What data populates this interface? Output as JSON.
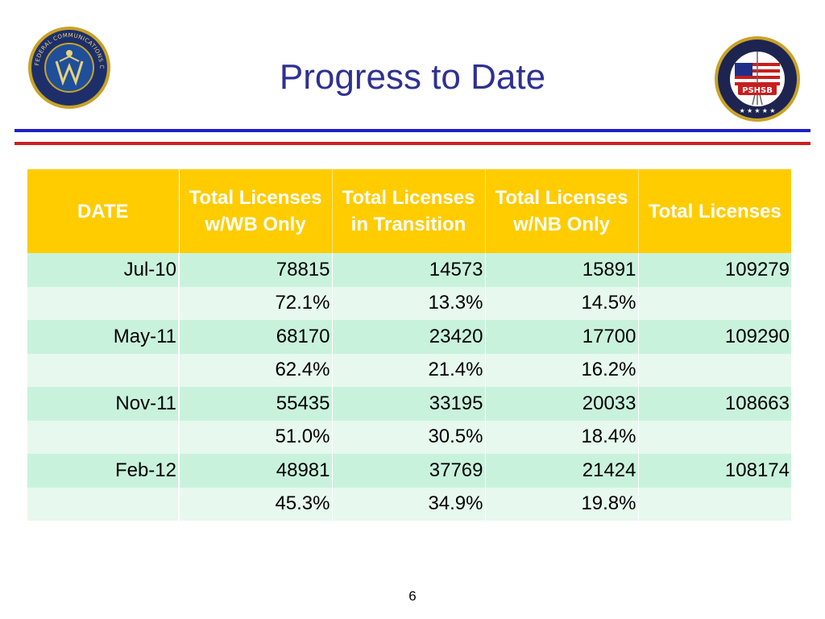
{
  "slide": {
    "title": "Progress to Date",
    "page_number": "6"
  },
  "logos": {
    "left": {
      "icon": "fcc-seal-icon",
      "text": "FEDERAL COMMUNICATIONS COMMISSION"
    },
    "right": {
      "icon": "pshsb-seal-icon",
      "text": "PSHSB"
    }
  },
  "colors": {
    "title": "#2e3192",
    "header_bg": "#ffcc00",
    "row_odd": "#c9f2dd",
    "row_even": "#e7f8ee",
    "rule_blue": "#1f1fc9",
    "rule_red": "#cc1f1f"
  },
  "table": {
    "headers": [
      "DATE",
      "Total Licenses w/WB Only",
      "Total Licenses in Transition",
      "Total Licenses w/NB Only",
      "Total Licenses"
    ],
    "rows": [
      [
        "Jul-10",
        "78815",
        "14573",
        "15891",
        "109279"
      ],
      [
        "",
        "72.1%",
        "13.3%",
        "14.5%",
        ""
      ],
      [
        "May-11",
        "68170",
        "23420",
        "17700",
        "109290"
      ],
      [
        "",
        "62.4%",
        "21.4%",
        "16.2%",
        ""
      ],
      [
        "Nov-11",
        "55435",
        "33195",
        "20033",
        "108663"
      ],
      [
        "",
        "51.0%",
        "30.5%",
        "18.4%",
        ""
      ],
      [
        "Feb-12",
        "48981",
        "37769",
        "21424",
        "108174"
      ],
      [
        "",
        "45.3%",
        "34.9%",
        "19.8%",
        ""
      ]
    ]
  }
}
